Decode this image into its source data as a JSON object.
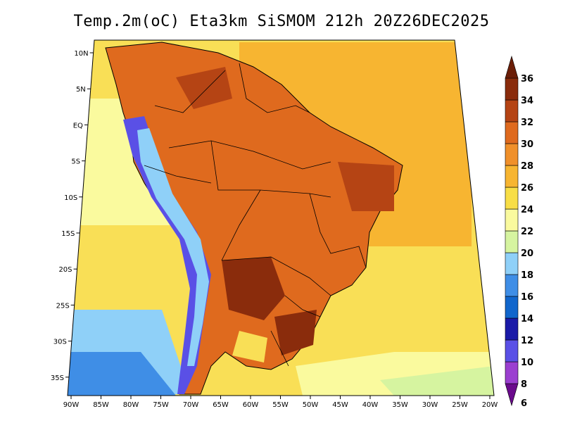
{
  "title": "Temp.2m(oC) Eta3km SiSMOM 212h 20Z26DEC2025",
  "lat_labels": [
    "10N",
    "5N",
    "EQ",
    "5S",
    "10S",
    "15S",
    "20S",
    "25S",
    "30S",
    "35S"
  ],
  "lon_labels": [
    "90W",
    "85W",
    "80W",
    "75W",
    "70W",
    "65W",
    "60W",
    "55W",
    "50W",
    "45W",
    "40W",
    "35W",
    "30W",
    "25W",
    "20W"
  ],
  "colorbar": {
    "labels": [
      "6",
      "8",
      "10",
      "12",
      "14",
      "16",
      "18",
      "20",
      "22",
      "24",
      "26",
      "28",
      "30",
      "32",
      "34",
      "36"
    ],
    "colors": [
      "#6a0a8c",
      "#9b3fd0",
      "#5a50e6",
      "#1a1aa8",
      "#1166cc",
      "#3f8ee6",
      "#8fd0f8",
      "#d6f4a0",
      "#fafa9e",
      "#f8de46",
      "#f7b531",
      "#f0902a",
      "#df6a1e",
      "#b54414",
      "#8a2c0c",
      "#6b1e08"
    ]
  },
  "colors": {
    "ocean_warm": "#f9c448",
    "ocean_mid": "#f9df56",
    "ocean_cool": "#fafa9e",
    "land_hot": "#df6a1e",
    "land_very_hot": "#8a2c0c",
    "andes": "#5a50e6",
    "border": "#000000"
  }
}
